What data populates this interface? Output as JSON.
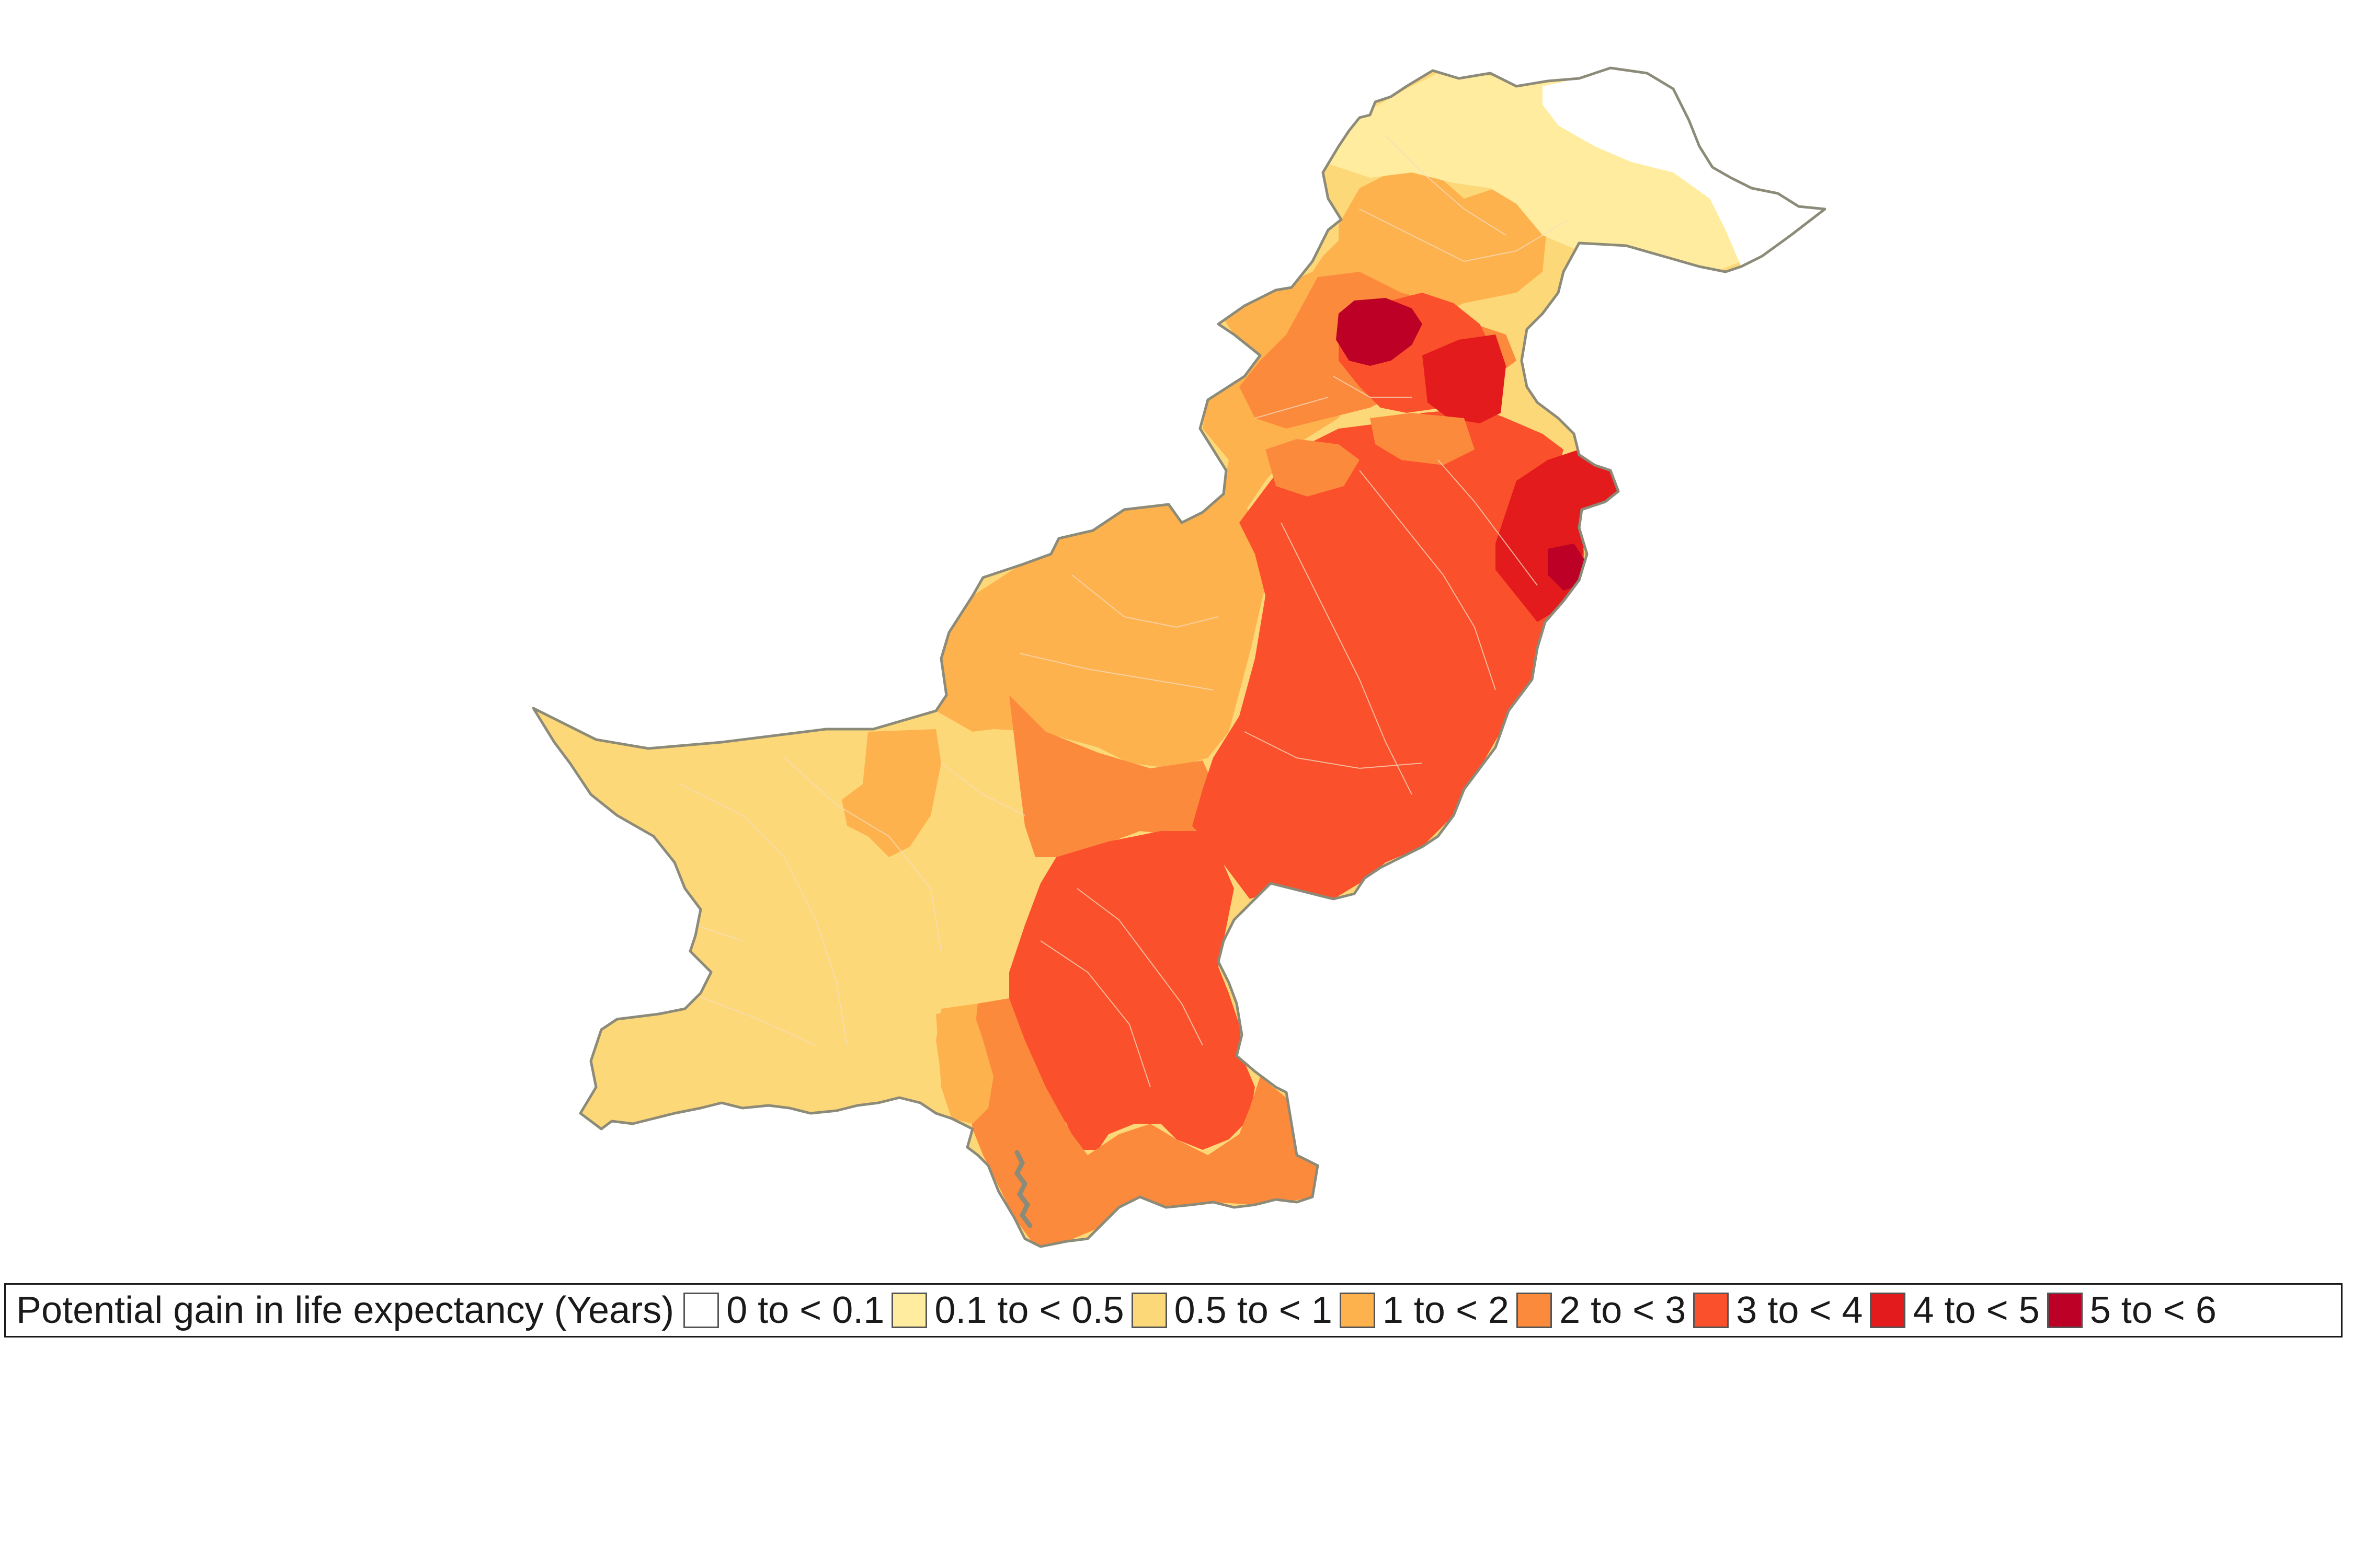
{
  "map": {
    "country": "Pakistan",
    "outline_color": "#8c8a78",
    "boundary_color": "#f2d9b8"
  },
  "legend": {
    "title": "Potential gain in life expectancy (Years)",
    "classes": [
      {
        "label": "0 to < 0.1",
        "color": "#ffffff"
      },
      {
        "label": "0.1 to < 0.5",
        "color": "#ffec9e"
      },
      {
        "label": "0.5 to < 1",
        "color": "#fdd878"
      },
      {
        "label": "1 to < 2",
        "color": "#fdb24e"
      },
      {
        "label": "2 to < 3",
        "color": "#fc8a3c"
      },
      {
        "label": "3 to < 4",
        "color": "#fb502c"
      },
      {
        "label": "4 to < 5",
        "color": "#e31b1c"
      },
      {
        "label": "5 to < 6",
        "color": "#bd0026"
      }
    ]
  }
}
